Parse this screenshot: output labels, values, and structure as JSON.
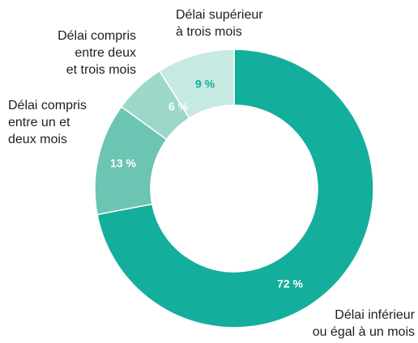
{
  "chart_data": {
    "type": "donut",
    "categories": [
      "Délai inférieur\nou égal à un mois",
      "Délai compris\nentre un et\ndeux mois",
      "Délai compris\nentre deux\net trois mois",
      "Délai supérieur\nà trois mois"
    ],
    "values": [
      72,
      13,
      6,
      9
    ],
    "value_labels": [
      "72 %",
      "13 %",
      "6 %",
      "9 %"
    ],
    "colors": [
      "#14ae9c",
      "#6cc4b2",
      "#9dd7ca",
      "#c6e9e2"
    ]
  }
}
